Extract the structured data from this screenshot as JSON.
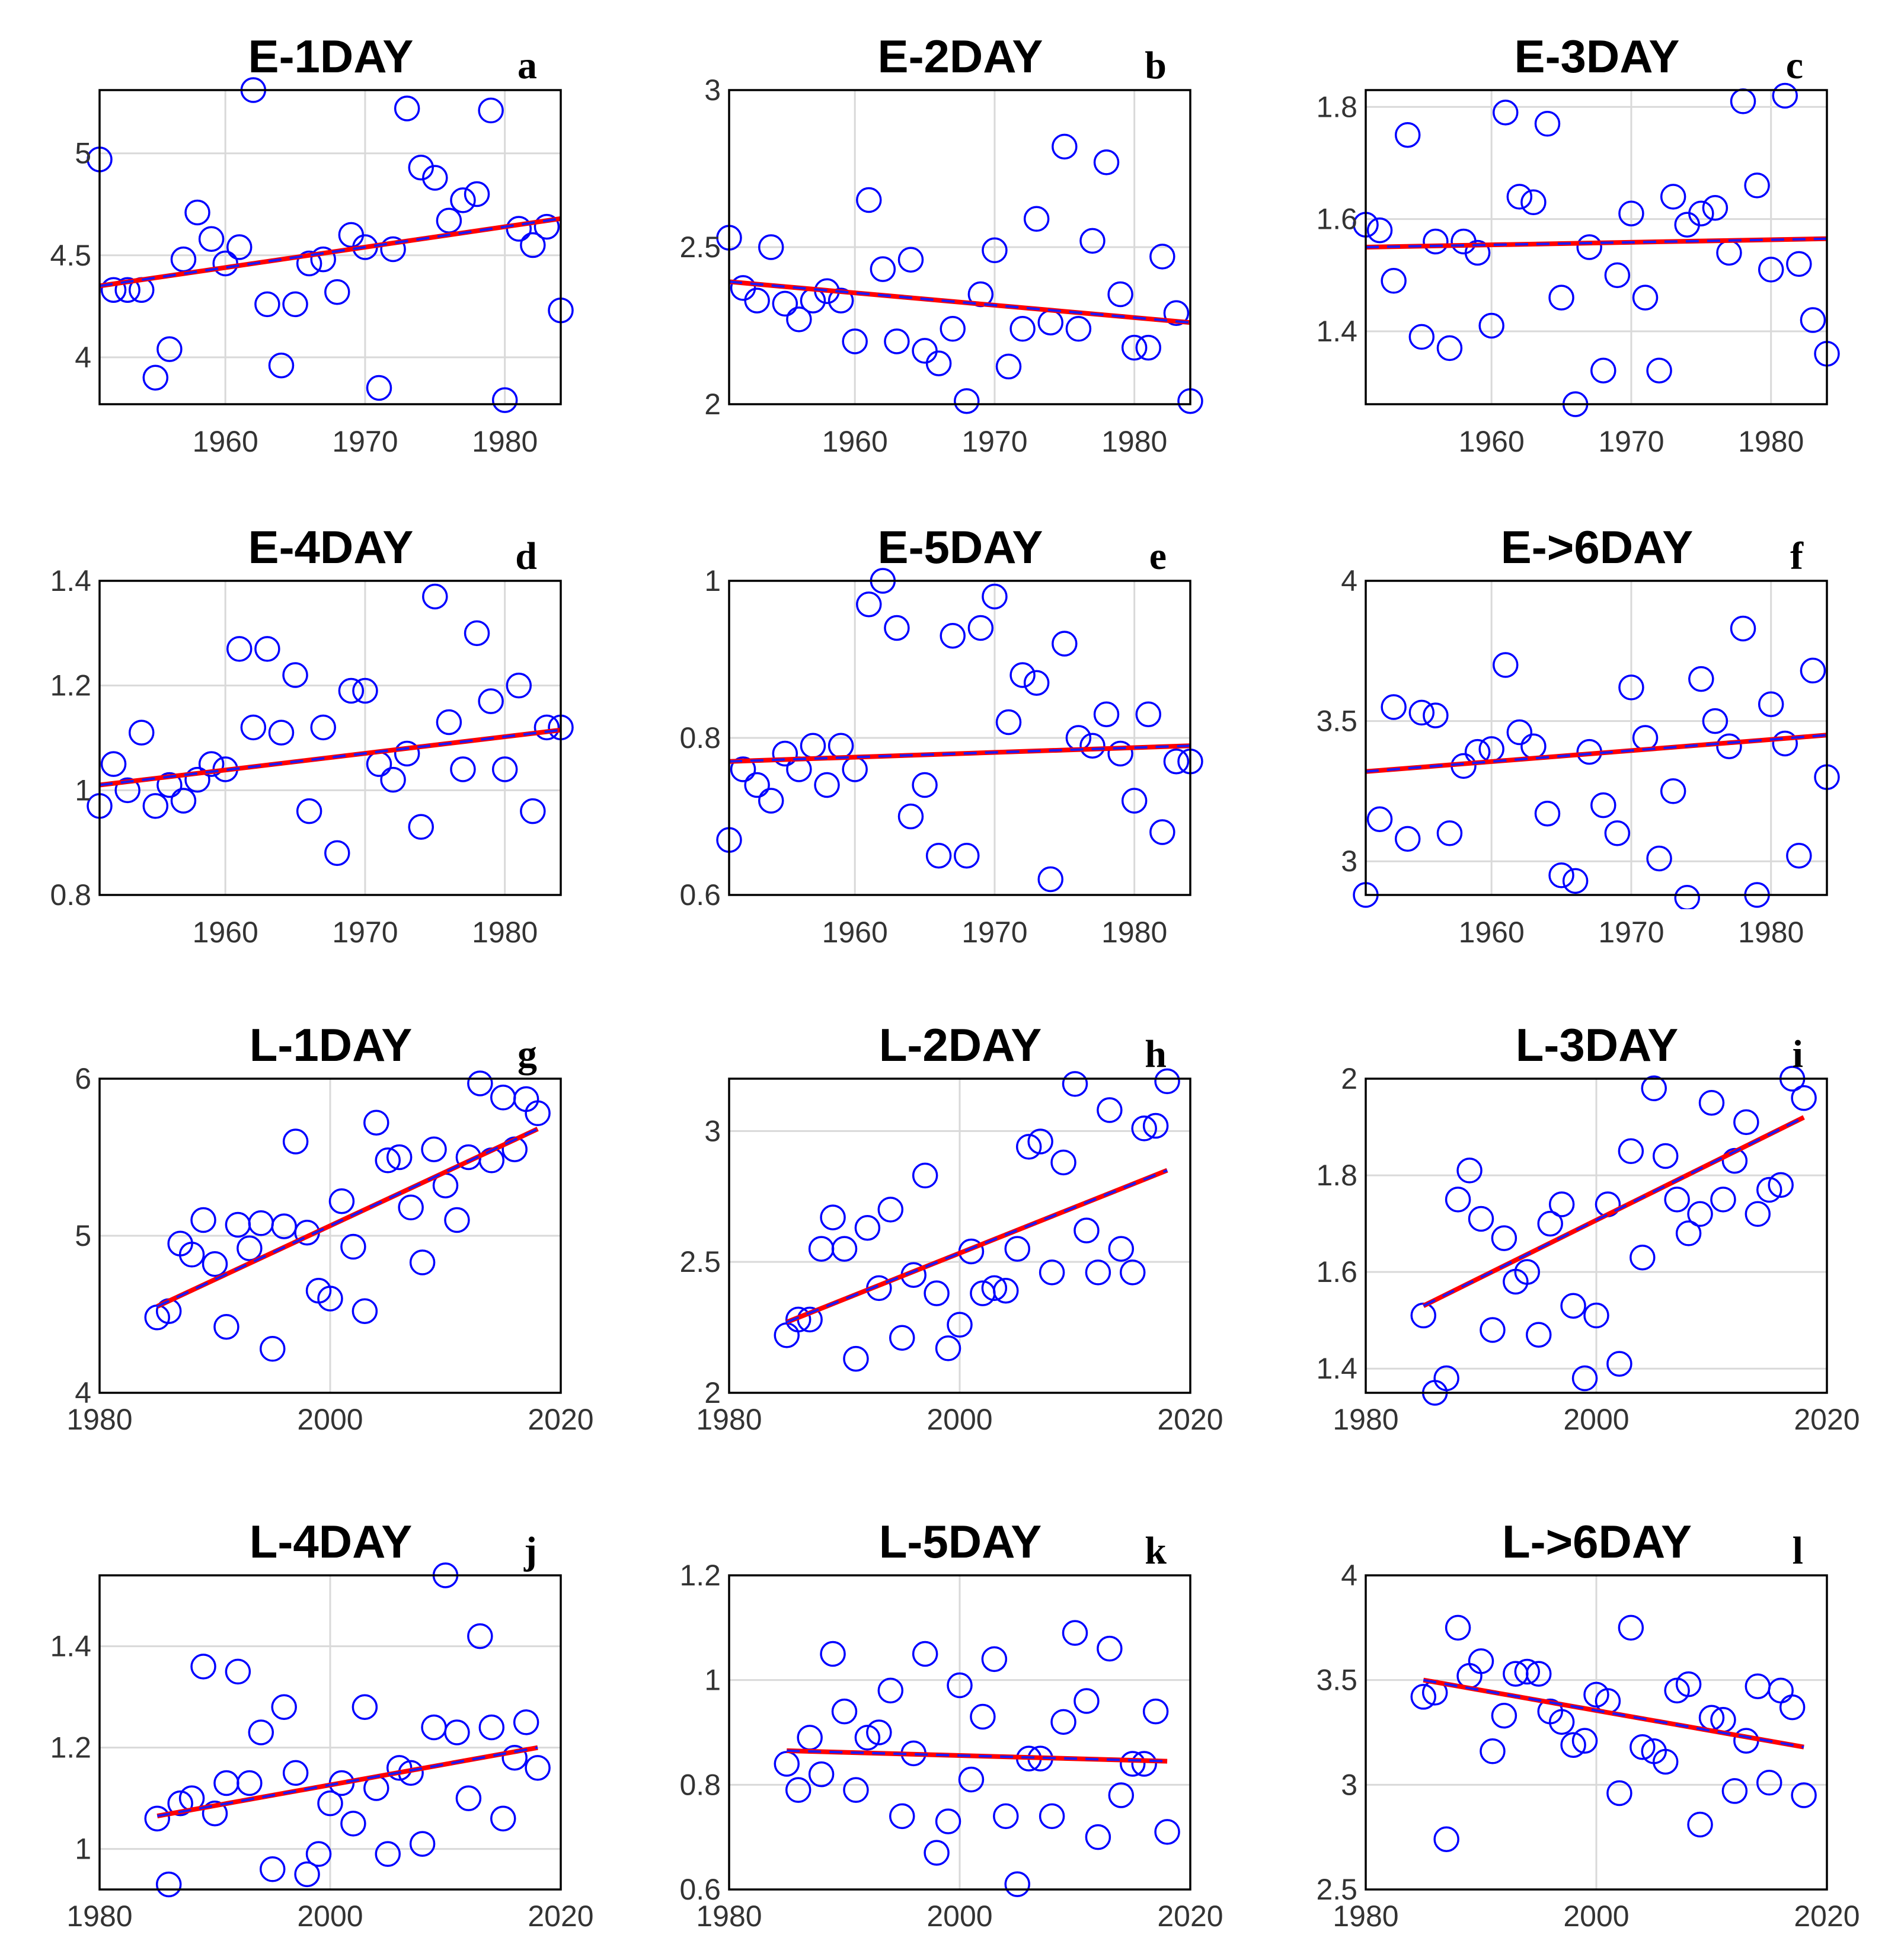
{
  "figure": {
    "marker_color": "#0000ff",
    "trend_colors": {
      "fit": "#ff0000",
      "overlay": "#0000ff"
    },
    "grid_color": "#d9d9d9"
  },
  "chart_data": [
    {
      "type": "scatter",
      "letter": "a",
      "title": "E-1DAY",
      "xlim": [
        1951,
        1984
      ],
      "ylim": [
        3.77,
        5.31
      ],
      "xticks": [
        "1960",
        "1970",
        "1980"
      ],
      "xtick_values": [
        1960,
        1970,
        1980
      ],
      "yticks": [
        "4",
        "4.5",
        "5"
      ],
      "ytick_values": [
        4,
        4.5,
        5
      ],
      "trend": [
        [
          1951,
          4.35
        ],
        [
          1984,
          4.68
        ]
      ],
      "x": [
        1951,
        1952,
        1953,
        1954,
        1955,
        1956,
        1957,
        1958,
        1959,
        1960,
        1961,
        1962,
        1963,
        1964,
        1965,
        1966,
        1967,
        1968,
        1969,
        1970,
        1971,
        1972,
        1973,
        1974,
        1975,
        1976,
        1977,
        1978,
        1979,
        1980,
        1981,
        1982,
        1983,
        1984
      ],
      "y": [
        4.97,
        4.33,
        4.33,
        4.33,
        3.9,
        4.04,
        4.48,
        4.71,
        4.58,
        4.46,
        4.54,
        5.31,
        4.26,
        3.96,
        4.26,
        4.46,
        4.48,
        4.32,
        4.6,
        4.54,
        3.85,
        4.53,
        5.22,
        4.93,
        4.88,
        4.67,
        4.77,
        4.8,
        5.21,
        3.79,
        4.63,
        4.55,
        4.64,
        4.23
      ]
    },
    {
      "type": "scatter",
      "letter": "b",
      "title": "E-2DAY",
      "xlim": [
        1951,
        1984
      ],
      "ylim": [
        2.0,
        3.0
      ],
      "xticks": [
        "1960",
        "1970",
        "1980"
      ],
      "xtick_values": [
        1960,
        1970,
        1980
      ],
      "yticks": [
        "2",
        "2.5",
        "3"
      ],
      "ytick_values": [
        2,
        2.5,
        3
      ],
      "trend": [
        [
          1951,
          2.39
        ],
        [
          1984,
          2.26
        ]
      ],
      "x": [
        1951,
        1952,
        1953,
        1954,
        1955,
        1956,
        1957,
        1958,
        1959,
        1960,
        1961,
        1962,
        1963,
        1964,
        1965,
        1966,
        1967,
        1968,
        1969,
        1970,
        1971,
        1972,
        1973,
        1974,
        1975,
        1976,
        1977,
        1978,
        1979,
        1980,
        1981,
        1982,
        1983,
        1984
      ],
      "y": [
        2.53,
        2.37,
        2.33,
        2.5,
        2.32,
        2.27,
        2.33,
        2.36,
        2.33,
        2.2,
        2.65,
        2.43,
        2.2,
        2.46,
        2.17,
        2.13,
        2.24,
        2.01,
        2.35,
        2.49,
        2.12,
        2.24,
        2.59,
        2.26,
        2.82,
        2.24,
        2.52,
        2.77,
        2.35,
        2.18,
        2.18,
        2.47,
        2.29,
        2.01
      ]
    },
    {
      "type": "scatter",
      "letter": "c",
      "title": "E-3DAY",
      "xlim": [
        1951,
        1984
      ],
      "ylim": [
        1.27,
        1.83
      ],
      "xticks": [
        "1960",
        "1970",
        "1980"
      ],
      "xtick_values": [
        1960,
        1970,
        1980
      ],
      "yticks": [
        "1.4",
        "1.6",
        "1.8"
      ],
      "ytick_values": [
        1.4,
        1.6,
        1.8
      ],
      "trend": [
        [
          1951,
          1.55
        ],
        [
          1984,
          1.565
        ]
      ],
      "x": [
        1951,
        1952,
        1953,
        1954,
        1955,
        1956,
        1957,
        1958,
        1959,
        1960,
        1961,
        1962,
        1963,
        1964,
        1965,
        1966,
        1967,
        1968,
        1969,
        1970,
        1971,
        1972,
        1973,
        1974,
        1975,
        1976,
        1977,
        1978,
        1979,
        1980,
        1981,
        1982,
        1983,
        1984
      ],
      "y": [
        1.59,
        1.58,
        1.49,
        1.75,
        1.39,
        1.56,
        1.37,
        1.56,
        1.54,
        1.41,
        1.79,
        1.64,
        1.63,
        1.77,
        1.46,
        1.27,
        1.55,
        1.33,
        1.5,
        1.61,
        1.46,
        1.33,
        1.64,
        1.59,
        1.61,
        1.62,
        1.54,
        1.81,
        1.66,
        1.51,
        1.82,
        1.52,
        1.42,
        1.36
      ]
    },
    {
      "type": "scatter",
      "letter": "d",
      "title": "E-4DAY",
      "xlim": [
        1951,
        1984
      ],
      "ylim": [
        0.8,
        1.4
      ],
      "xticks": [
        "1960",
        "1970",
        "1980"
      ],
      "xtick_values": [
        1960,
        1970,
        1980
      ],
      "yticks": [
        "0.8",
        "1",
        "1.2",
        "1.4"
      ],
      "ytick_values": [
        0.8,
        1.0,
        1.2,
        1.4
      ],
      "trend": [
        [
          1951,
          1.01
        ],
        [
          1984,
          1.115
        ]
      ],
      "x": [
        1951,
        1952,
        1953,
        1954,
        1955,
        1956,
        1957,
        1958,
        1959,
        1960,
        1961,
        1962,
        1963,
        1964,
        1965,
        1966,
        1967,
        1968,
        1969,
        1970,
        1971,
        1972,
        1973,
        1974,
        1975,
        1976,
        1977,
        1978,
        1979,
        1980,
        1981,
        1982,
        1983,
        1984
      ],
      "y": [
        0.97,
        1.05,
        1.0,
        1.11,
        0.97,
        1.01,
        0.98,
        1.02,
        1.05,
        1.04,
        1.27,
        1.12,
        1.27,
        1.11,
        1.22,
        0.96,
        1.12,
        0.88,
        1.19,
        1.19,
        1.05,
        1.02,
        1.07,
        0.93,
        1.37,
        1.13,
        1.04,
        1.3,
        1.17,
        1.04,
        1.2,
        0.96,
        1.12,
        1.12
      ]
    },
    {
      "type": "scatter",
      "letter": "e",
      "title": "E-5DAY",
      "xlim": [
        1951,
        1984
      ],
      "ylim": [
        0.6,
        1.0
      ],
      "xticks": [
        "1960",
        "1970",
        "1980"
      ],
      "xtick_values": [
        1960,
        1970,
        1980
      ],
      "yticks": [
        "0.6",
        "0.8",
        "1"
      ],
      "ytick_values": [
        0.6,
        0.8,
        1.0
      ],
      "trend": [
        [
          1951,
          0.77
        ],
        [
          1984,
          0.79
        ]
      ],
      "x": [
        1951,
        1952,
        1953,
        1954,
        1955,
        1956,
        1957,
        1958,
        1959,
        1960,
        1961,
        1962,
        1963,
        1964,
        1965,
        1966,
        1967,
        1968,
        1969,
        1970,
        1971,
        1972,
        1973,
        1974,
        1975,
        1976,
        1977,
        1978,
        1979,
        1980,
        1981,
        1982,
        1983,
        1984
      ],
      "y": [
        0.67,
        0.76,
        0.74,
        0.72,
        0.78,
        0.76,
        0.79,
        0.74,
        0.79,
        0.76,
        0.97,
        1.0,
        0.94,
        0.7,
        0.74,
        0.65,
        0.93,
        0.65,
        0.94,
        0.98,
        0.82,
        0.88,
        0.87,
        0.62,
        0.92,
        0.8,
        0.79,
        0.83,
        0.78,
        0.72,
        0.83,
        0.68,
        0.77,
        0.77
      ]
    },
    {
      "type": "scatter",
      "letter": "f",
      "title": "E->6DAY",
      "xlim": [
        1951,
        1984
      ],
      "ylim": [
        2.88,
        4.0
      ],
      "xticks": [
        "1960",
        "1970",
        "1980"
      ],
      "xtick_values": [
        1960,
        1970,
        1980
      ],
      "yticks": [
        "3",
        "3.5",
        "4"
      ],
      "ytick_values": [
        3,
        3.5,
        4
      ],
      "trend": [
        [
          1951,
          3.32
        ],
        [
          1984,
          3.45
        ]
      ],
      "x": [
        1951,
        1952,
        1953,
        1954,
        1955,
        1956,
        1957,
        1958,
        1959,
        1960,
        1961,
        1962,
        1963,
        1964,
        1965,
        1966,
        1967,
        1968,
        1969,
        1970,
        1971,
        1972,
        1973,
        1974,
        1975,
        1976,
        1977,
        1978,
        1979,
        1980,
        1981,
        1982,
        1983,
        1984
      ],
      "y": [
        2.88,
        3.15,
        3.55,
        3.08,
        3.53,
        3.52,
        3.1,
        3.34,
        3.39,
        3.4,
        3.7,
        3.46,
        3.41,
        3.17,
        2.95,
        2.93,
        3.39,
        3.2,
        3.1,
        3.62,
        3.44,
        3.01,
        3.25,
        2.87,
        3.65,
        3.5,
        3.41,
        3.83,
        2.88,
        3.56,
        3.42,
        3.02,
        3.68,
        3.3
      ]
    },
    {
      "type": "scatter",
      "letter": "g",
      "title": "L-1DAY",
      "xlim": [
        1980,
        2020
      ],
      "ylim": [
        4.0,
        6.0
      ],
      "xticks": [
        "1980",
        "2000",
        "2020"
      ],
      "xtick_values": [
        1980,
        2000,
        2020
      ],
      "yticks": [
        "4",
        "5",
        "6"
      ],
      "ytick_values": [
        4,
        5,
        6
      ],
      "trend": [
        [
          1985,
          4.55
        ],
        [
          2018,
          5.68
        ]
      ],
      "x": [
        1985,
        1986,
        1987,
        1988,
        1989,
        1990,
        1991,
        1992,
        1993,
        1994,
        1995,
        1996,
        1997,
        1998,
        1999,
        2000,
        2001,
        2002,
        2003,
        2004,
        2005,
        2006,
        2007,
        2008,
        2009,
        2010,
        2011,
        2012,
        2013,
        2014,
        2015,
        2016,
        2017,
        2018
      ],
      "y": [
        4.48,
        4.52,
        4.95,
        4.88,
        5.1,
        4.82,
        4.42,
        5.07,
        4.92,
        5.08,
        4.28,
        5.06,
        5.6,
        5.02,
        4.65,
        4.6,
        5.22,
        4.93,
        4.52,
        5.72,
        5.48,
        5.5,
        5.18,
        4.83,
        5.55,
        5.32,
        5.1,
        5.5,
        5.97,
        5.48,
        5.88,
        5.55,
        5.87,
        5.78
      ]
    },
    {
      "type": "scatter",
      "letter": "h",
      "title": "L-2DAY",
      "xlim": [
        1980,
        2020
      ],
      "ylim": [
        2.0,
        3.2
      ],
      "xticks": [
        "1980",
        "2000",
        "2020"
      ],
      "xtick_values": [
        1980,
        2000,
        2020
      ],
      "yticks": [
        "2",
        "2.5",
        "3"
      ],
      "ytick_values": [
        2,
        2.5,
        3
      ],
      "trend": [
        [
          1985,
          2.27
        ],
        [
          2018,
          2.85
        ]
      ],
      "x": [
        1985,
        1986,
        1987,
        1988,
        1989,
        1990,
        1991,
        1992,
        1993,
        1994,
        1995,
        1996,
        1997,
        1998,
        1999,
        2000,
        2001,
        2002,
        2003,
        2004,
        2005,
        2006,
        2007,
        2008,
        2009,
        2010,
        2011,
        2012,
        2013,
        2014,
        2015,
        2016,
        2017,
        2018
      ],
      "y": [
        2.22,
        2.28,
        2.28,
        2.55,
        2.67,
        2.55,
        2.13,
        2.63,
        2.4,
        2.7,
        2.21,
        2.45,
        2.83,
        2.38,
        2.17,
        2.26,
        2.54,
        2.38,
        2.4,
        2.39,
        2.55,
        2.94,
        2.96,
        2.46,
        2.88,
        3.18,
        2.62,
        2.46,
        3.08,
        2.55,
        2.46,
        3.01,
        3.02,
        3.19
      ]
    },
    {
      "type": "scatter",
      "letter": "i",
      "title": "L-3DAY",
      "xlim": [
        1980,
        2020
      ],
      "ylim": [
        1.35,
        2.0
      ],
      "xticks": [
        "1980",
        "2000",
        "2020"
      ],
      "xtick_values": [
        1980,
        2000,
        2020
      ],
      "yticks": [
        "1.4",
        "1.6",
        "1.8",
        "2"
      ],
      "ytick_values": [
        1.4,
        1.6,
        1.8,
        2.0
      ],
      "trend": [
        [
          1985,
          1.53
        ],
        [
          2018,
          1.92
        ]
      ],
      "x": [
        1985,
        1986,
        1987,
        1988,
        1989,
        1990,
        1991,
        1992,
        1993,
        1994,
        1995,
        1996,
        1997,
        1998,
        1999,
        2000,
        2001,
        2002,
        2003,
        2004,
        2005,
        2006,
        2007,
        2008,
        2009,
        2010,
        2011,
        2012,
        2013,
        2014,
        2015,
        2016,
        2017,
        2018
      ],
      "y": [
        1.51,
        1.35,
        1.38,
        1.75,
        1.81,
        1.71,
        1.48,
        1.67,
        1.58,
        1.6,
        1.47,
        1.7,
        1.74,
        1.53,
        1.38,
        1.51,
        1.74,
        1.41,
        1.85,
        1.63,
        1.98,
        1.84,
        1.75,
        1.68,
        1.72,
        1.95,
        1.75,
        1.83,
        1.91,
        1.72,
        1.77,
        1.78,
        2.0,
        1.96
      ]
    },
    {
      "type": "scatter",
      "letter": "j",
      "title": "L-4DAY",
      "xlim": [
        1980,
        2020
      ],
      "ylim": [
        0.92,
        1.54
      ],
      "xticks": [
        "1980",
        "2000",
        "2020"
      ],
      "xtick_values": [
        1980,
        2000,
        2020
      ],
      "yticks": [
        "1",
        "1.2",
        "1.4"
      ],
      "ytick_values": [
        1.0,
        1.2,
        1.4
      ],
      "trend": [
        [
          1985,
          1.065
        ],
        [
          2018,
          1.2
        ]
      ],
      "x": [
        1985,
        1986,
        1987,
        1988,
        1989,
        1990,
        1991,
        1992,
        1993,
        1994,
        1995,
        1996,
        1997,
        1998,
        1999,
        2000,
        2001,
        2002,
        2003,
        2004,
        2005,
        2006,
        2007,
        2008,
        2009,
        2010,
        2011,
        2012,
        2013,
        2014,
        2015,
        2016,
        2017,
        2018
      ],
      "y": [
        1.06,
        0.93,
        1.09,
        1.1,
        1.36,
        1.07,
        1.13,
        1.35,
        1.13,
        1.23,
        0.96,
        1.28,
        1.15,
        0.95,
        0.99,
        1.09,
        1.13,
        1.05,
        1.28,
        1.12,
        0.99,
        1.16,
        1.15,
        1.01,
        1.24,
        1.54,
        1.23,
        1.1,
        1.42,
        1.24,
        1.06,
        1.18,
        1.25,
        1.16
      ]
    },
    {
      "type": "scatter",
      "letter": "k",
      "title": "L-5DAY",
      "xlim": [
        1980,
        2020
      ],
      "ylim": [
        0.6,
        1.2
      ],
      "xticks": [
        "1980",
        "2000",
        "2020"
      ],
      "xtick_values": [
        1980,
        2000,
        2020
      ],
      "yticks": [
        "0.6",
        "0.8",
        "1",
        "1.2"
      ],
      "ytick_values": [
        0.6,
        0.8,
        1.0,
        1.2
      ],
      "trend": [
        [
          1985,
          0.865
        ],
        [
          2018,
          0.845
        ]
      ],
      "x": [
        1985,
        1986,
        1987,
        1988,
        1989,
        1990,
        1991,
        1992,
        1993,
        1994,
        1995,
        1996,
        1997,
        1998,
        1999,
        2000,
        2001,
        2002,
        2003,
        2004,
        2005,
        2006,
        2007,
        2008,
        2009,
        2010,
        2011,
        2012,
        2013,
        2014,
        2015,
        2016,
        2017,
        2018
      ],
      "y": [
        0.84,
        0.79,
        0.89,
        0.82,
        1.05,
        0.94,
        0.79,
        0.89,
        0.9,
        0.98,
        0.74,
        0.86,
        1.05,
        0.67,
        0.73,
        0.99,
        0.81,
        0.93,
        1.04,
        0.74,
        0.61,
        0.85,
        0.85,
        0.74,
        0.92,
        1.09,
        0.96,
        0.7,
        1.06,
        0.78,
        0.84,
        0.84,
        0.94,
        0.71
      ]
    },
    {
      "type": "scatter",
      "letter": "l",
      "title": "L->6DAY",
      "xlim": [
        1980,
        2020
      ],
      "ylim": [
        2.5,
        4.0
      ],
      "xticks": [
        "1980",
        "2000",
        "2020"
      ],
      "xtick_values": [
        1980,
        2000,
        2020
      ],
      "yticks": [
        "2.5",
        "3",
        "3.5",
        "4"
      ],
      "ytick_values": [
        2.5,
        3.0,
        3.5,
        4.0
      ],
      "trend": [
        [
          1985,
          3.5
        ],
        [
          2018,
          3.18
        ]
      ],
      "x": [
        1985,
        1986,
        1987,
        1988,
        1989,
        1990,
        1991,
        1992,
        1993,
        1994,
        1995,
        1996,
        1997,
        1998,
        1999,
        2000,
        2001,
        2002,
        2003,
        2004,
        2005,
        2006,
        2007,
        2008,
        2009,
        2010,
        2011,
        2012,
        2013,
        2014,
        2015,
        2016,
        2017,
        2018
      ],
      "y": [
        3.42,
        3.44,
        2.74,
        3.75,
        3.52,
        3.59,
        3.16,
        3.33,
        3.53,
        3.54,
        3.53,
        3.35,
        3.3,
        3.19,
        3.21,
        3.43,
        3.4,
        2.96,
        3.75,
        3.18,
        3.16,
        3.11,
        3.45,
        3.48,
        2.81,
        3.32,
        3.31,
        2.97,
        3.21,
        3.47,
        3.01,
        3.45,
        3.37,
        2.95
      ]
    }
  ]
}
